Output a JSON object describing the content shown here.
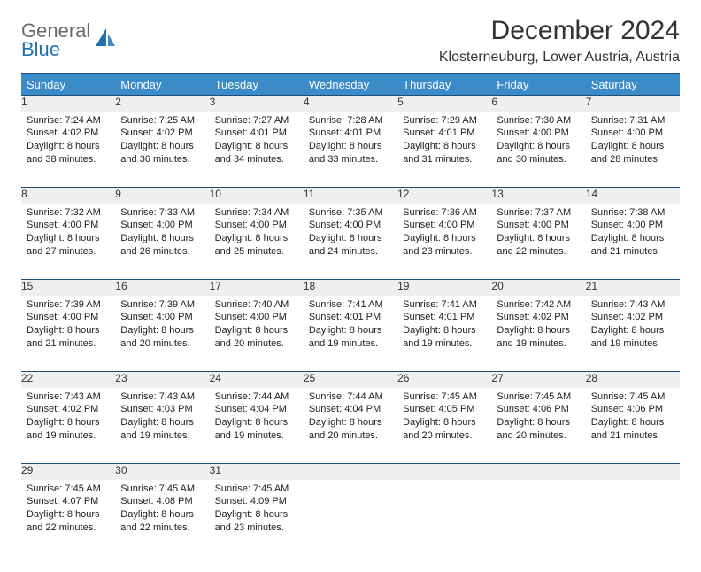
{
  "brand": {
    "line1": "General",
    "line2": "Blue"
  },
  "title": "December 2024",
  "location": "Klosterneuburg, Lower Austria, Austria",
  "colors": {
    "header_bg": "#3b8bc8",
    "header_border": "#1f4e79",
    "daynum_bg": "#efefef",
    "text": "#222222",
    "logo_gray": "#6b6b6b",
    "logo_blue": "#1f6fb2"
  },
  "weekdays": [
    "Sunday",
    "Monday",
    "Tuesday",
    "Wednesday",
    "Thursday",
    "Friday",
    "Saturday"
  ],
  "weeks": [
    [
      {
        "n": "1",
        "sr": "Sunrise: 7:24 AM",
        "ss": "Sunset: 4:02 PM",
        "d1": "Daylight: 8 hours",
        "d2": "and 38 minutes."
      },
      {
        "n": "2",
        "sr": "Sunrise: 7:25 AM",
        "ss": "Sunset: 4:02 PM",
        "d1": "Daylight: 8 hours",
        "d2": "and 36 minutes."
      },
      {
        "n": "3",
        "sr": "Sunrise: 7:27 AM",
        "ss": "Sunset: 4:01 PM",
        "d1": "Daylight: 8 hours",
        "d2": "and 34 minutes."
      },
      {
        "n": "4",
        "sr": "Sunrise: 7:28 AM",
        "ss": "Sunset: 4:01 PM",
        "d1": "Daylight: 8 hours",
        "d2": "and 33 minutes."
      },
      {
        "n": "5",
        "sr": "Sunrise: 7:29 AM",
        "ss": "Sunset: 4:01 PM",
        "d1": "Daylight: 8 hours",
        "d2": "and 31 minutes."
      },
      {
        "n": "6",
        "sr": "Sunrise: 7:30 AM",
        "ss": "Sunset: 4:00 PM",
        "d1": "Daylight: 8 hours",
        "d2": "and 30 minutes."
      },
      {
        "n": "7",
        "sr": "Sunrise: 7:31 AM",
        "ss": "Sunset: 4:00 PM",
        "d1": "Daylight: 8 hours",
        "d2": "and 28 minutes."
      }
    ],
    [
      {
        "n": "8",
        "sr": "Sunrise: 7:32 AM",
        "ss": "Sunset: 4:00 PM",
        "d1": "Daylight: 8 hours",
        "d2": "and 27 minutes."
      },
      {
        "n": "9",
        "sr": "Sunrise: 7:33 AM",
        "ss": "Sunset: 4:00 PM",
        "d1": "Daylight: 8 hours",
        "d2": "and 26 minutes."
      },
      {
        "n": "10",
        "sr": "Sunrise: 7:34 AM",
        "ss": "Sunset: 4:00 PM",
        "d1": "Daylight: 8 hours",
        "d2": "and 25 minutes."
      },
      {
        "n": "11",
        "sr": "Sunrise: 7:35 AM",
        "ss": "Sunset: 4:00 PM",
        "d1": "Daylight: 8 hours",
        "d2": "and 24 minutes."
      },
      {
        "n": "12",
        "sr": "Sunrise: 7:36 AM",
        "ss": "Sunset: 4:00 PM",
        "d1": "Daylight: 8 hours",
        "d2": "and 23 minutes."
      },
      {
        "n": "13",
        "sr": "Sunrise: 7:37 AM",
        "ss": "Sunset: 4:00 PM",
        "d1": "Daylight: 8 hours",
        "d2": "and 22 minutes."
      },
      {
        "n": "14",
        "sr": "Sunrise: 7:38 AM",
        "ss": "Sunset: 4:00 PM",
        "d1": "Daylight: 8 hours",
        "d2": "and 21 minutes."
      }
    ],
    [
      {
        "n": "15",
        "sr": "Sunrise: 7:39 AM",
        "ss": "Sunset: 4:00 PM",
        "d1": "Daylight: 8 hours",
        "d2": "and 21 minutes."
      },
      {
        "n": "16",
        "sr": "Sunrise: 7:39 AM",
        "ss": "Sunset: 4:00 PM",
        "d1": "Daylight: 8 hours",
        "d2": "and 20 minutes."
      },
      {
        "n": "17",
        "sr": "Sunrise: 7:40 AM",
        "ss": "Sunset: 4:00 PM",
        "d1": "Daylight: 8 hours",
        "d2": "and 20 minutes."
      },
      {
        "n": "18",
        "sr": "Sunrise: 7:41 AM",
        "ss": "Sunset: 4:01 PM",
        "d1": "Daylight: 8 hours",
        "d2": "and 19 minutes."
      },
      {
        "n": "19",
        "sr": "Sunrise: 7:41 AM",
        "ss": "Sunset: 4:01 PM",
        "d1": "Daylight: 8 hours",
        "d2": "and 19 minutes."
      },
      {
        "n": "20",
        "sr": "Sunrise: 7:42 AM",
        "ss": "Sunset: 4:02 PM",
        "d1": "Daylight: 8 hours",
        "d2": "and 19 minutes."
      },
      {
        "n": "21",
        "sr": "Sunrise: 7:43 AM",
        "ss": "Sunset: 4:02 PM",
        "d1": "Daylight: 8 hours",
        "d2": "and 19 minutes."
      }
    ],
    [
      {
        "n": "22",
        "sr": "Sunrise: 7:43 AM",
        "ss": "Sunset: 4:02 PM",
        "d1": "Daylight: 8 hours",
        "d2": "and 19 minutes."
      },
      {
        "n": "23",
        "sr": "Sunrise: 7:43 AM",
        "ss": "Sunset: 4:03 PM",
        "d1": "Daylight: 8 hours",
        "d2": "and 19 minutes."
      },
      {
        "n": "24",
        "sr": "Sunrise: 7:44 AM",
        "ss": "Sunset: 4:04 PM",
        "d1": "Daylight: 8 hours",
        "d2": "and 19 minutes."
      },
      {
        "n": "25",
        "sr": "Sunrise: 7:44 AM",
        "ss": "Sunset: 4:04 PM",
        "d1": "Daylight: 8 hours",
        "d2": "and 20 minutes."
      },
      {
        "n": "26",
        "sr": "Sunrise: 7:45 AM",
        "ss": "Sunset: 4:05 PM",
        "d1": "Daylight: 8 hours",
        "d2": "and 20 minutes."
      },
      {
        "n": "27",
        "sr": "Sunrise: 7:45 AM",
        "ss": "Sunset: 4:06 PM",
        "d1": "Daylight: 8 hours",
        "d2": "and 20 minutes."
      },
      {
        "n": "28",
        "sr": "Sunrise: 7:45 AM",
        "ss": "Sunset: 4:06 PM",
        "d1": "Daylight: 8 hours",
        "d2": "and 21 minutes."
      }
    ],
    [
      {
        "n": "29",
        "sr": "Sunrise: 7:45 AM",
        "ss": "Sunset: 4:07 PM",
        "d1": "Daylight: 8 hours",
        "d2": "and 22 minutes."
      },
      {
        "n": "30",
        "sr": "Sunrise: 7:45 AM",
        "ss": "Sunset: 4:08 PM",
        "d1": "Daylight: 8 hours",
        "d2": "and 22 minutes."
      },
      {
        "n": "31",
        "sr": "Sunrise: 7:45 AM",
        "ss": "Sunset: 4:09 PM",
        "d1": "Daylight: 8 hours",
        "d2": "and 23 minutes."
      },
      null,
      null,
      null,
      null
    ]
  ]
}
